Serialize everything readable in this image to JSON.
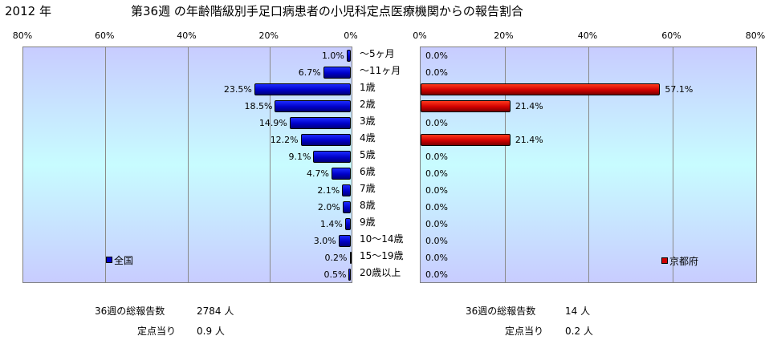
{
  "header": {
    "year": "2012 年",
    "title": "第36週 の年齢階級別手足口病患者の小児科定点医療機関からの報告割合"
  },
  "chart_data": [
    {
      "type": "bar",
      "orientation": "horizontal",
      "direction": "right-to-left",
      "categories": [
        "～5ヶ月",
        "～11ヶ月",
        "1歳",
        "2歳",
        "3歳",
        "4歳",
        "5歳",
        "6歳",
        "7歳",
        "8歳",
        "9歳",
        "10～14歳",
        "15～19歳",
        "20歳以上"
      ],
      "series": [
        {
          "name": "全国",
          "color": "#0000c8",
          "values": [
            1.0,
            6.7,
            23.5,
            18.5,
            14.9,
            12.2,
            9.1,
            4.7,
            2.1,
            2.0,
            1.4,
            3.0,
            0.2,
            0.5
          ],
          "labels": [
            "1.0%",
            "6.7%",
            "23.5%",
            "18.5%",
            "14.9%",
            "12.2%",
            "9.1%",
            "4.7%",
            "2.1%",
            "2.0%",
            "1.4%",
            "3.0%",
            "0.2%",
            "0.5%"
          ]
        }
      ],
      "xlim": [
        0,
        80
      ],
      "ticks": [
        "80%",
        "60%",
        "40%",
        "20%",
        "0%"
      ],
      "grid": true,
      "legend_position": "bottom-left"
    },
    {
      "type": "bar",
      "orientation": "horizontal",
      "direction": "left-to-right",
      "categories": [
        "～5ヶ月",
        "～11ヶ月",
        "1歳",
        "2歳",
        "3歳",
        "4歳",
        "5歳",
        "6歳",
        "7歳",
        "8歳",
        "9歳",
        "10～14歳",
        "15～19歳",
        "20歳以上"
      ],
      "series": [
        {
          "name": "京都府",
          "color": "#d00000",
          "values": [
            0.0,
            0.0,
            57.1,
            21.4,
            0.0,
            21.4,
            0.0,
            0.0,
            0.0,
            0.0,
            0.0,
            0.0,
            0.0,
            0.0
          ],
          "labels": [
            "0.0%",
            "0.0%",
            "57.1%",
            "21.4%",
            "0.0%",
            "21.4%",
            "0.0%",
            "0.0%",
            "0.0%",
            "0.0%",
            "0.0%",
            "0.0%",
            "0.0%",
            "0.0%"
          ]
        }
      ],
      "xlim": [
        0,
        80
      ],
      "ticks": [
        "0%",
        "20%",
        "40%",
        "60%",
        "80%"
      ],
      "grid": true,
      "legend_position": "bottom-right"
    }
  ],
  "footer": {
    "left_total_label": "36週の総報告数",
    "left_total_value": "2784 人",
    "left_per_label": "定点当り",
    "left_per_value": "0.9 人",
    "right_total_label": "36週の総報告数",
    "right_total_value": "14 人",
    "right_per_label": "定点当り",
    "right_per_value": "0.2 人"
  }
}
